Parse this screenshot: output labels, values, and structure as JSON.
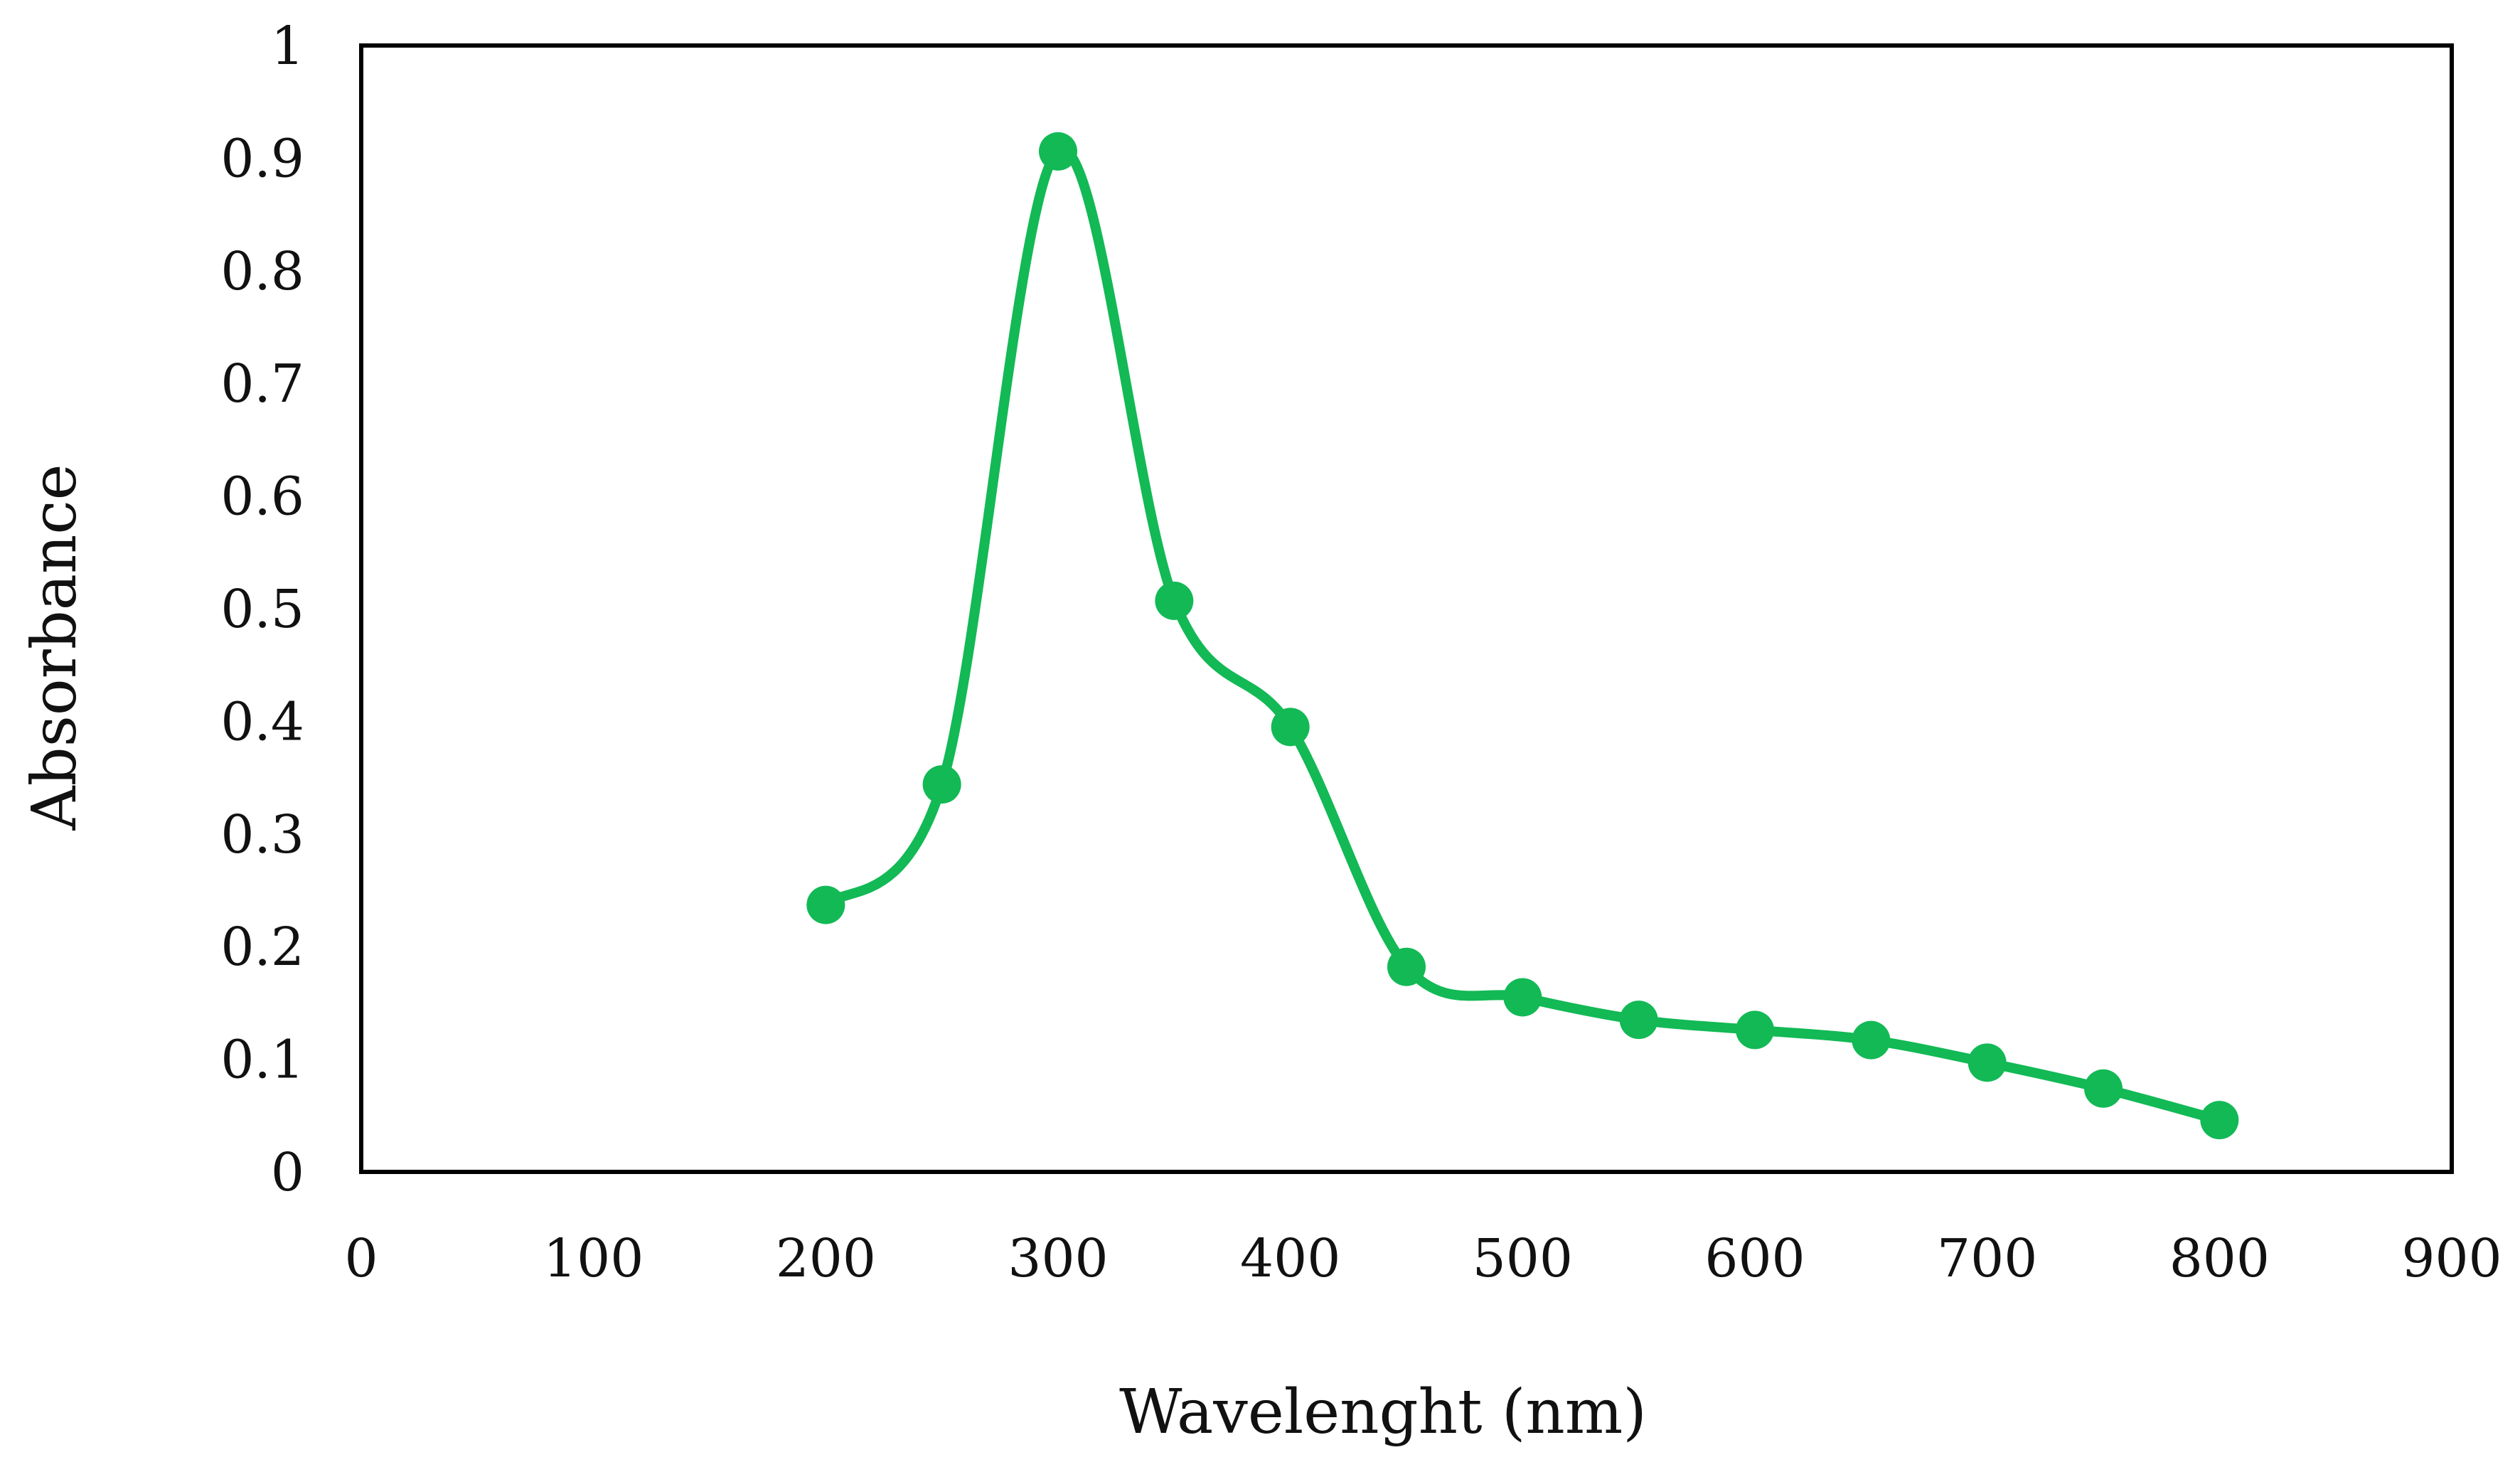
{
  "chart_data": {
    "type": "line",
    "title": "",
    "xlabel": "Wavelenght (nm)",
    "ylabel": "Absorbance",
    "xlim": [
      0,
      900
    ],
    "ylim": [
      0,
      1
    ],
    "grid": false,
    "legend": "none",
    "x_ticks": [
      "0",
      "100",
      "200",
      "300",
      "400",
      "500",
      "600",
      "700",
      "800",
      "900"
    ],
    "y_ticks": [
      "0",
      "0.1",
      "0.2",
      "0.3",
      "0.4",
      "0.5",
      "0.6",
      "0.7",
      "0.8",
      "0.9",
      "1"
    ],
    "series": [
      {
        "name": "Absorbance",
        "color": "#12b955",
        "smooth": true,
        "markers": true,
        "x": [
          200,
          250,
          300,
          350,
          400,
          450,
          500,
          550,
          600,
          650,
          700,
          750,
          800
        ],
        "y": [
          0.237,
          0.344,
          0.906,
          0.507,
          0.395,
          0.182,
          0.155,
          0.135,
          0.126,
          0.117,
          0.097,
          0.074,
          0.046
        ]
      }
    ]
  }
}
